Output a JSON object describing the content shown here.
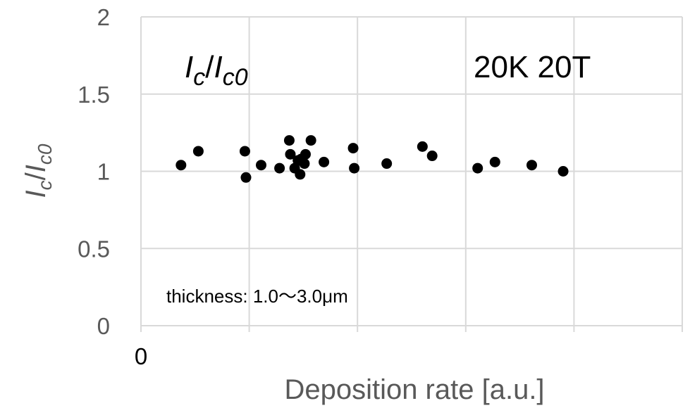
{
  "chart_data": {
    "type": "scatter",
    "title": "",
    "xlabel": "Deposition rate [a.u.]",
    "ylabel": {
      "main": "I",
      "sub1": "c",
      "slash": "/",
      "main2": "I",
      "sub2": "c0"
    },
    "ylim": [
      0,
      2
    ],
    "xlim": [
      0,
      5
    ],
    "yticks": [
      0,
      0.5,
      1,
      1.5,
      2
    ],
    "ytick_labels": [
      "0",
      "0.5",
      "1",
      "1.5",
      "2"
    ],
    "xticks": [
      0,
      1,
      2,
      3,
      4,
      5
    ],
    "xtick_labels": [
      "0"
    ],
    "grid": true,
    "marker_color": "#000000",
    "grid_color": "#d9d9d9",
    "annotations": {
      "ratio_label": {
        "main": "I",
        "sub1": "c",
        "slash": "/",
        "main2": "I",
        "sub2": "c0"
      },
      "condition": "20K 20T",
      "thickness": "thickness:  1.0〜3.0μm"
    },
    "series": [
      {
        "x": [
          0.37,
          0.53,
          0.96,
          0.97,
          1.11,
          1.28,
          1.37,
          1.38,
          1.42,
          1.45,
          1.47,
          1.48,
          1.51,
          1.52,
          1.57,
          1.69,
          1.96,
          1.97,
          2.27,
          2.6,
          2.69,
          3.11,
          3.27,
          3.61,
          3.9
        ],
        "y": [
          1.04,
          1.13,
          1.13,
          0.96,
          1.04,
          1.02,
          1.2,
          1.11,
          1.02,
          1.07,
          0.98,
          1.08,
          1.05,
          1.11,
          1.2,
          1.06,
          1.15,
          1.02,
          1.05,
          1.16,
          1.1,
          1.02,
          1.06,
          1.04,
          1.0
        ]
      }
    ]
  }
}
